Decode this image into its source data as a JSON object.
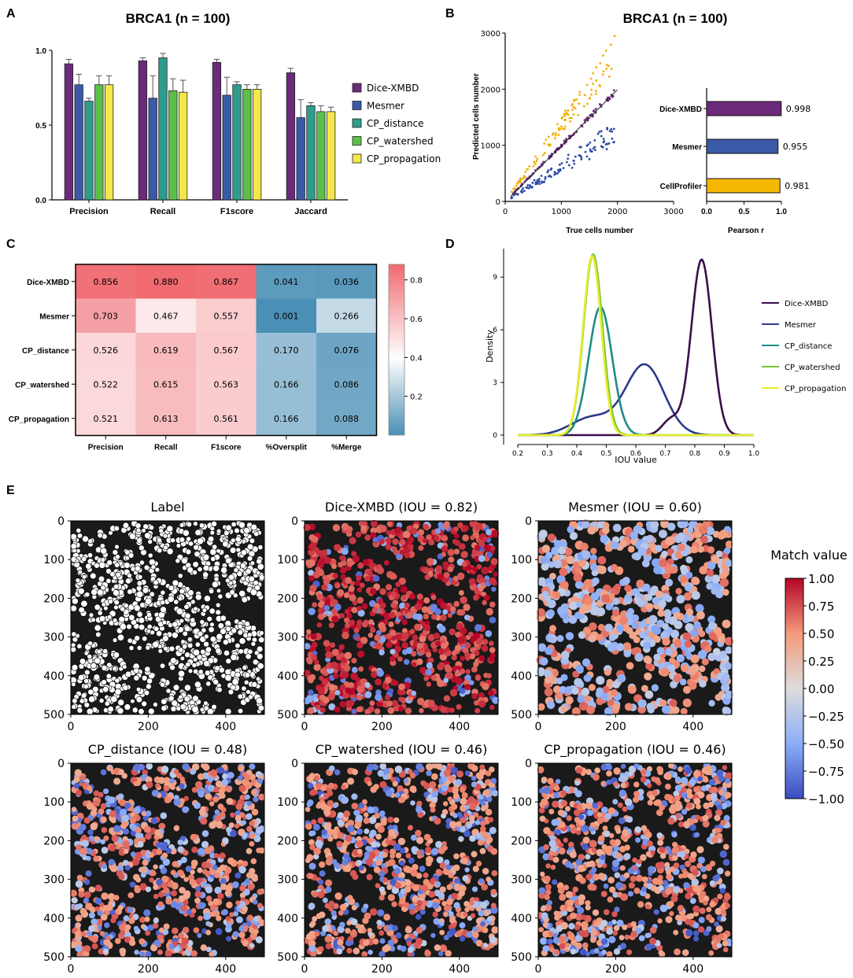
{
  "panel_letters": [
    "A",
    "B",
    "C",
    "D",
    "E"
  ],
  "colors": {
    "dice": "#6b2a7a",
    "mesmer": "#3a5aa8",
    "cp_distance": "#2e9c8c",
    "cp_watershed": "#5cbf4a",
    "cp_propagation": "#f2e84a",
    "cellprofiler": "#f5b800",
    "scatter_mesmer": "#2a4aa8",
    "scatter_cp": "#f0b000",
    "d_dice": "#3b0d4a",
    "d_mesmer": "#2d3a8c",
    "d_cpd": "#1f8c85",
    "d_cpw": "#74c83a",
    "d_cpp": "#eaed2e"
  },
  "chart_data": [
    {
      "panel": "A",
      "type": "bar",
      "title": "BRCA1 (n = 100)",
      "categories": [
        "Precision",
        "Recall",
        "F1score",
        "Jaccard"
      ],
      "ylim": [
        0,
        1.0
      ],
      "yticks": [
        "0.0",
        "0.5",
        "1.0"
      ],
      "series": [
        {
          "name": "Dice-XMBD",
          "color": "#6b2a7a",
          "values": [
            0.91,
            0.93,
            0.92,
            0.85
          ],
          "err": [
            0.03,
            0.02,
            0.02,
            0.03
          ]
        },
        {
          "name": "Mesmer",
          "color": "#3a5aa8",
          "values": [
            0.77,
            0.68,
            0.7,
            0.55
          ],
          "err": [
            0.07,
            0.15,
            0.12,
            0.12
          ]
        },
        {
          "name": "CP_distance",
          "color": "#2e9c8c",
          "values": [
            0.66,
            0.95,
            0.77,
            0.63
          ],
          "err": [
            0.02,
            0.03,
            0.02,
            0.02
          ]
        },
        {
          "name": "CP_watershed",
          "color": "#5cbf4a",
          "values": [
            0.77,
            0.73,
            0.74,
            0.59
          ],
          "err": [
            0.06,
            0.08,
            0.03,
            0.04
          ]
        },
        {
          "name": "CP_propagation",
          "color": "#f2e84a",
          "values": [
            0.77,
            0.72,
            0.74,
            0.59
          ],
          "err": [
            0.06,
            0.08,
            0.03,
            0.03
          ]
        }
      ]
    },
    {
      "panel": "B",
      "type": "scatter",
      "title": "BRCA1 (n = 100)",
      "xlabel": "True cells number",
      "ylabel": "Predicted cells number",
      "xlim": [
        0,
        3000
      ],
      "ylim": [
        0,
        3000
      ],
      "xticks": [
        "0",
        "1000",
        "2000",
        "3000"
      ],
      "yticks": [
        "0",
        "1000",
        "2000",
        "3000"
      ],
      "series": [
        {
          "name": "Dice-XMBD",
          "slope": 1.0,
          "noise": 0.03
        },
        {
          "name": "Mesmer",
          "slope": 0.62,
          "noise": 0.12
        },
        {
          "name": "CellProfiler",
          "slope": 1.35,
          "noise": 0.08
        }
      ],
      "fit_line": {
        "x": [
          100,
          2000
        ],
        "y": [
          90,
          1990
        ]
      }
    },
    {
      "panel": "B-inset",
      "type": "bar",
      "orientation": "horizontal",
      "categories": [
        "Dice-XMBD",
        "Mesmer",
        "CellProfiler"
      ],
      "values": [
        0.998,
        0.955,
        0.981
      ],
      "labels": [
        "0.998",
        "0.955",
        "0.981"
      ],
      "xlabel": "Pearson r",
      "xlim": [
        0,
        1.0
      ],
      "xticks": [
        "0.0",
        "0.5",
        "1.0"
      ]
    },
    {
      "panel": "C",
      "type": "heatmap",
      "rows": [
        "Dice-XMBD",
        "Mesmer",
        "CP_distance",
        "CP_watershed",
        "CP_propagation"
      ],
      "columns": [
        "Precision",
        "Recall",
        "F1score",
        "%Oversplit",
        "%Merge"
      ],
      "values": [
        [
          0.856,
          0.88,
          0.867,
          0.041,
          0.036
        ],
        [
          0.703,
          0.467,
          0.557,
          0.001,
          0.266
        ],
        [
          0.526,
          0.619,
          0.567,
          0.17,
          0.076
        ],
        [
          0.522,
          0.615,
          0.563,
          0.166,
          0.086
        ],
        [
          0.521,
          0.613,
          0.561,
          0.166,
          0.088
        ]
      ],
      "labels": [
        [
          "0.856",
          "0.880",
          "0.867",
          "0.041",
          "0.036"
        ],
        [
          "0.703",
          "0.467",
          "0.557",
          "0.001",
          "0.266"
        ],
        [
          "0.526",
          "0.619",
          "0.567",
          "0.170",
          "0.076"
        ],
        [
          "0.522",
          "0.615",
          "0.563",
          "0.166",
          "0.086"
        ],
        [
          "0.521",
          "0.613",
          "0.561",
          "0.166",
          "0.088"
        ]
      ],
      "colorbar_ticks": [
        "0.8",
        "0.6",
        "0.4",
        "0.2"
      ],
      "colorbar_range": [
        0.0,
        0.88
      ]
    },
    {
      "panel": "D",
      "type": "line",
      "xlabel": "IOU value",
      "ylabel": "Density",
      "xlim": [
        0.2,
        1.0
      ],
      "ylim": [
        0,
        10.8
      ],
      "xticks": [
        "0.2",
        "0.3",
        "0.4",
        "0.5",
        "0.6",
        "0.7",
        "0.8",
        "0.9",
        "1.0"
      ],
      "yticks": [
        "0",
        "3",
        "6",
        "9"
      ],
      "series": [
        {
          "name": "Dice-XMBD",
          "color": "#3b0d4a",
          "peaks": [
            [
              0.823,
              0.035,
              10.0
            ],
            [
              0.72,
              0.03,
              0.9
            ]
          ]
        },
        {
          "name": "Mesmer",
          "color": "#2d3a8c",
          "peaks": [
            [
              0.63,
              0.065,
              4.0
            ],
            [
              0.45,
              0.07,
              1.0
            ]
          ]
        },
        {
          "name": "CP_distance",
          "color": "#1f8c85",
          "peaks": [
            [
              0.48,
              0.04,
              7.3
            ]
          ]
        },
        {
          "name": "CP_watershed",
          "color": "#74c83a",
          "peaks": [
            [
              0.455,
              0.032,
              10.3
            ]
          ]
        },
        {
          "name": "CP_propagation",
          "color": "#eaed2e",
          "peaks": [
            [
              0.452,
              0.031,
              10.2
            ]
          ]
        }
      ]
    },
    {
      "panel": "E",
      "type": "heatmap",
      "images": [
        {
          "title": "Label",
          "kind": "label"
        },
        {
          "title": "Dice-XMBD (IOU = 0.82)",
          "kind": "dice"
        },
        {
          "title": "Mesmer (IOU = 0.60)",
          "kind": "mesmer"
        },
        {
          "title": "CP_distance (IOU = 0.48)",
          "kind": "cpd"
        },
        {
          "title": "CP_watershed (IOU = 0.46)",
          "kind": "cpw"
        },
        {
          "title": "CP_propagation (IOU = 0.46)",
          "kind": "cpp"
        }
      ],
      "xticks": [
        "0",
        "200",
        "400"
      ],
      "yticks": [
        "0",
        "100",
        "200",
        "300",
        "400",
        "500"
      ],
      "colorbar_title": "Match value",
      "colorbar_ticks": [
        "1.00",
        "0.75",
        "0.50",
        "0.25",
        "0.00",
        "−0.25",
        "−0.50",
        "−0.75",
        "−1.00"
      ]
    }
  ]
}
